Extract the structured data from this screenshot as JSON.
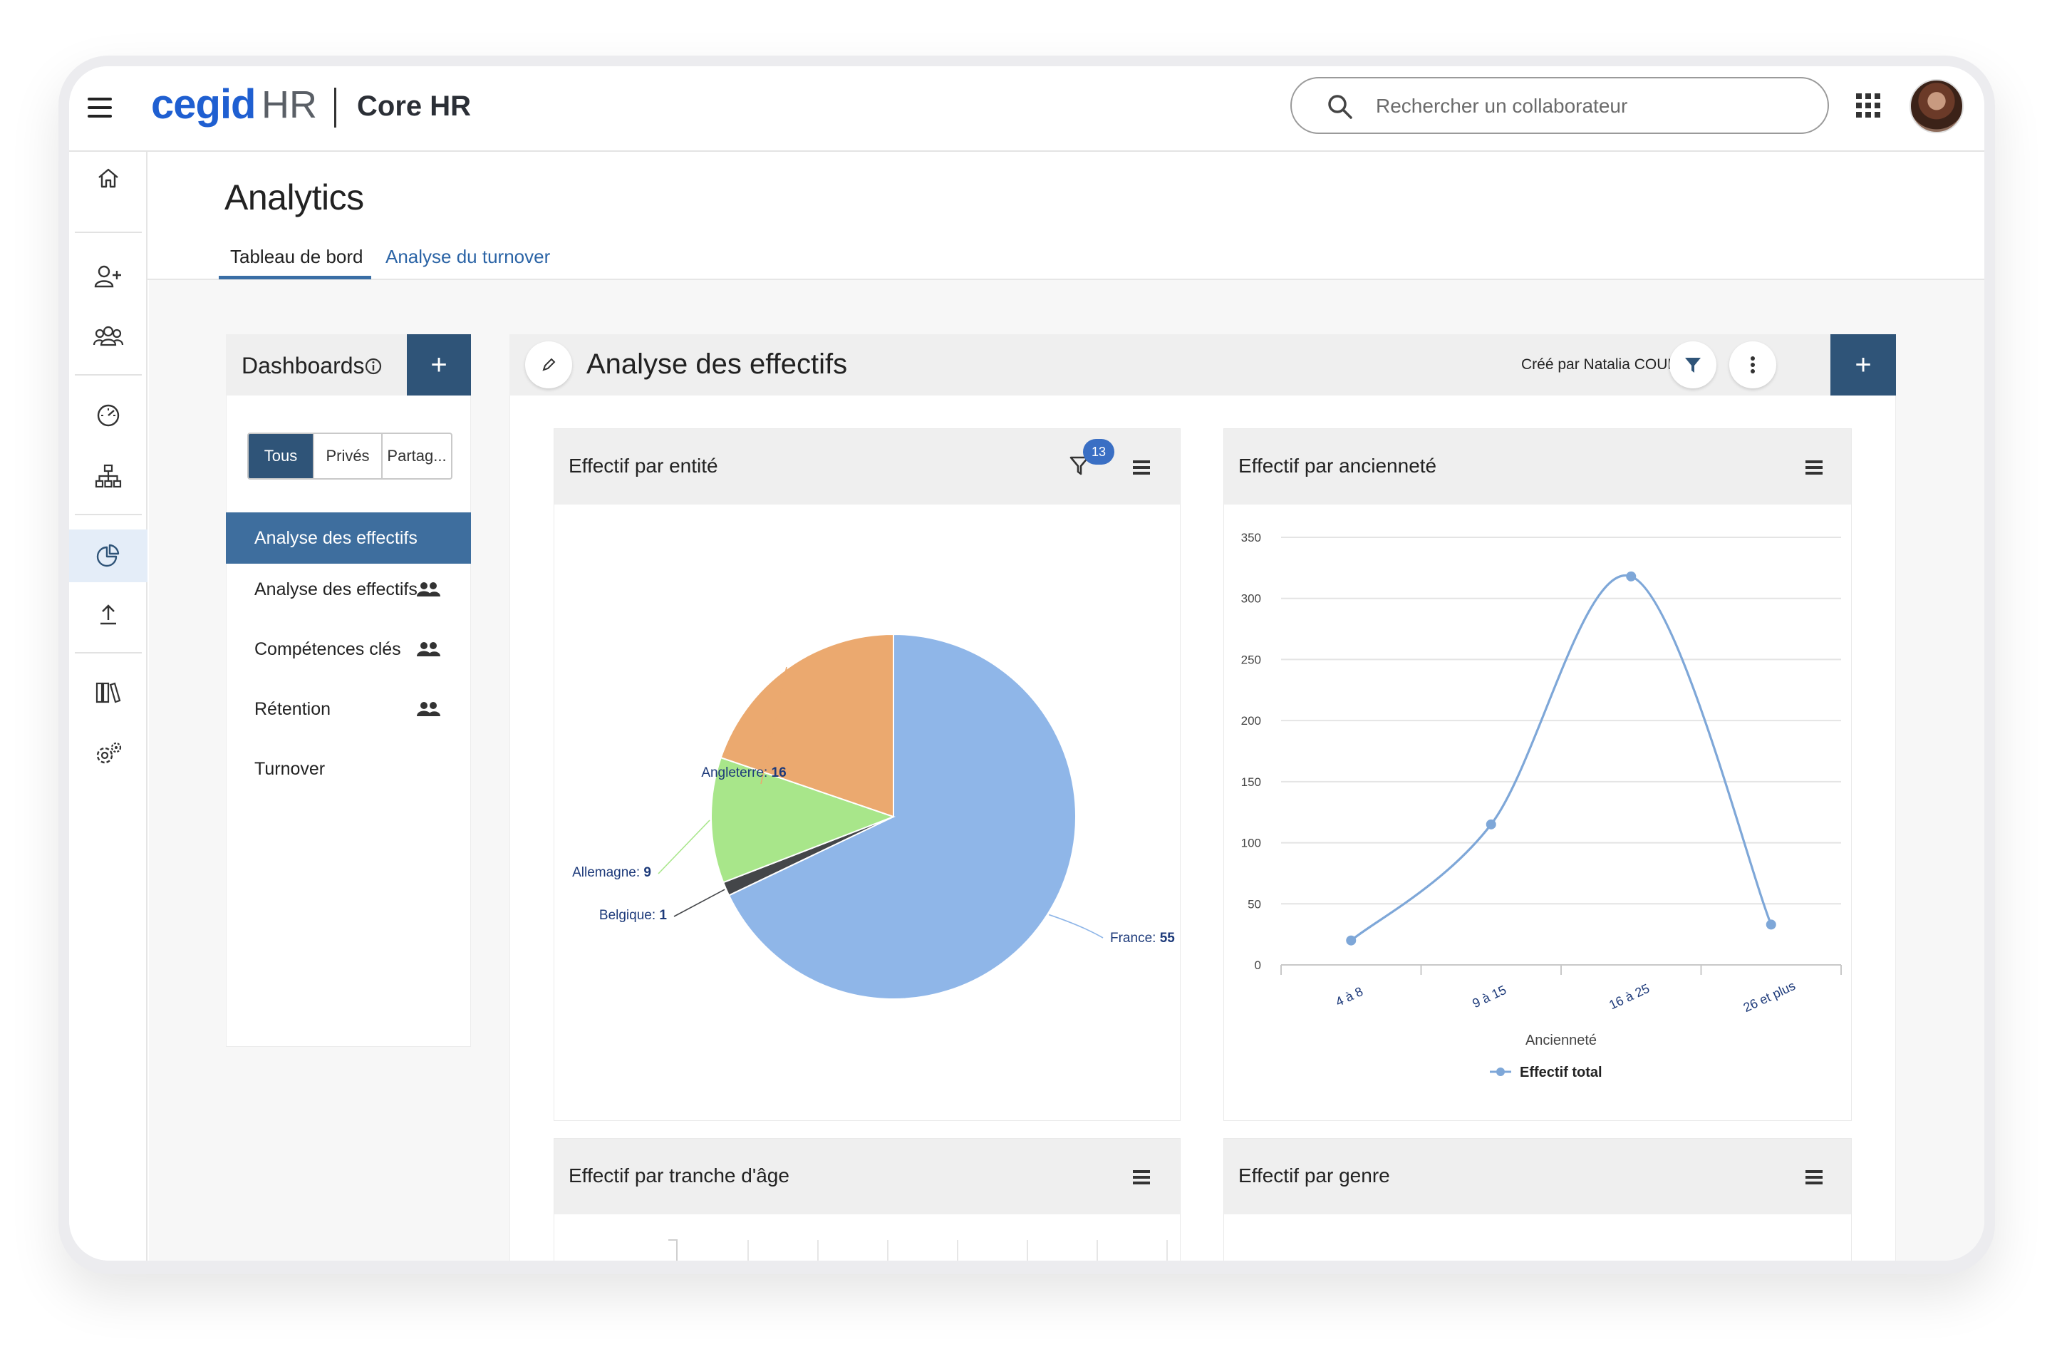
{
  "header": {
    "logo_brand": "cegid",
    "logo_product": "HR",
    "module": "Core HR",
    "search_placeholder": "Rechercher un collaborateur"
  },
  "rail": {
    "icons": [
      "home-icon",
      "add-user-icon",
      "team-icon",
      "gauge-icon",
      "org-chart-icon",
      "analytics-icon",
      "upload-icon",
      "library-icon",
      "settings-icon"
    ],
    "active": "analytics-icon"
  },
  "page": {
    "title": "Analytics",
    "tabs": [
      {
        "label": "Tableau de bord",
        "active": true
      },
      {
        "label": "Analyse du turnover",
        "active": false
      }
    ]
  },
  "dashboards": {
    "title": "Dashboards",
    "add_label": "+",
    "filters": [
      "Tous",
      "Privés",
      "Partag..."
    ],
    "items": [
      {
        "label": "Analyse des effectifs",
        "active": true,
        "shared": false
      },
      {
        "label": "Analyse des effectifs",
        "active": false,
        "shared": true
      },
      {
        "label": "Compétences clés",
        "active": false,
        "shared": true
      },
      {
        "label": "Rétention",
        "active": false,
        "shared": true
      },
      {
        "label": "Turnover",
        "active": false,
        "shared": false
      }
    ]
  },
  "main": {
    "title": "Analyse des effectifs",
    "created_by": "Créé par Natalia COUMARIN",
    "add_label": "+"
  },
  "cards": {
    "entity": {
      "title": "Effectif par entité",
      "filter_count": "13"
    },
    "seniority": {
      "title": "Effectif par ancienneté"
    },
    "age": {
      "title": "Effectif par tranche d'âge"
    },
    "gender": {
      "title": "Effectif par genre"
    }
  },
  "colors": {
    "accent": "#2f5478",
    "active_item": "#3e6e9e",
    "link": "#2b64a6",
    "france": "#8fb6e8",
    "angleterre": "#eba96f",
    "allemagne": "#a8e68a",
    "belgique": "#444649",
    "line": "#7ea7d8"
  },
  "chart_data": [
    {
      "type": "pie",
      "title": "Effectif par entité",
      "labels": [
        "France",
        "Belgique",
        "Allemagne",
        "Angleterre"
      ],
      "values": [
        55,
        1,
        9,
        16
      ]
    },
    {
      "type": "line",
      "title": "Effectif par ancienneté",
      "categories": [
        "4 à 8",
        "9 à 15",
        "16 à 25",
        "26 et plus"
      ],
      "series": [
        {
          "name": "Effectif total",
          "values": [
            20,
            115,
            318,
            33
          ]
        }
      ],
      "xlabel": "Ancienneté",
      "ylabel": "",
      "ylim": [
        0,
        350
      ],
      "yticks": [
        0,
        50,
        100,
        150,
        200,
        250,
        300,
        350
      ],
      "grid": true,
      "legend": "bottom"
    }
  ]
}
